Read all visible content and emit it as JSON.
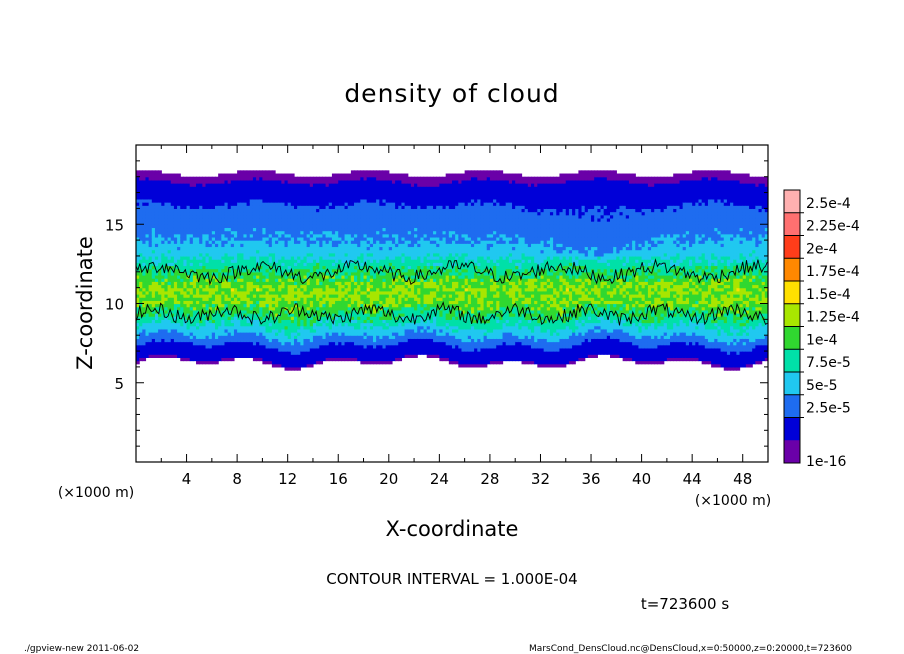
{
  "chart_data": {
    "type": "heatmap",
    "title": "density of cloud",
    "xlabel": "X-coordinate",
    "ylabel": "Z-coordinate",
    "x_unit": "(×1000 m)",
    "y_unit": "(×1000 m)",
    "xlim": [
      0,
      50
    ],
    "ylim": [
      0,
      20
    ],
    "x_ticks": [
      4,
      8,
      12,
      16,
      20,
      24,
      28,
      32,
      36,
      40,
      44,
      48
    ],
    "y_ticks": [
      5,
      10,
      15
    ],
    "colorbar": {
      "labels": [
        "2.5e-4",
        "2.25e-4",
        "2e-4",
        "1.75e-4",
        "1.5e-4",
        "1.25e-4",
        "1e-4",
        "7.5e-5",
        "5e-5",
        "2.5e-5",
        "1e-16"
      ],
      "colors": [
        "#ffb0b0",
        "#ff7070",
        "#ff3d1a",
        "#ff8800",
        "#ffe000",
        "#a8e600",
        "#30d830",
        "#00e0a8",
        "#20c8f0",
        "#1e6cf0",
        "#0000d8",
        "#6a00a8"
      ]
    },
    "contour_interval_text": "CONTOUR INTERVAL = 1.000E-04",
    "contour_level": 0.0001,
    "time_label": "t=723600 s",
    "cloud_profile": [
      {
        "z": 18.2,
        "value": 1e-16
      },
      {
        "z": 17.5,
        "value": 3e-06
      },
      {
        "z": 16.8,
        "value": 1.5e-05
      },
      {
        "z": 16.0,
        "value": 3e-05
      },
      {
        "z": 15.0,
        "value": 4e-05
      },
      {
        "z": 14.0,
        "value": 5e-05
      },
      {
        "z": 13.0,
        "value": 7e-05
      },
      {
        "z": 12.0,
        "value": 0.0001
      },
      {
        "z": 11.0,
        "value": 0.00013
      },
      {
        "z": 10.0,
        "value": 0.00012
      },
      {
        "z": 9.0,
        "value": 9e-05
      },
      {
        "z": 8.2,
        "value": 6e-05
      },
      {
        "z": 7.5,
        "value": 3e-05
      },
      {
        "z": 7.0,
        "value": 1e-05
      },
      {
        "z": 6.3,
        "value": 1e-16
      }
    ]
  },
  "footer": {
    "left": "./gpview-new   2011-06-02",
    "right": "MarsCond_DensCloud.nc@DensCloud,x=0:50000,z=0:20000,t=723600"
  }
}
